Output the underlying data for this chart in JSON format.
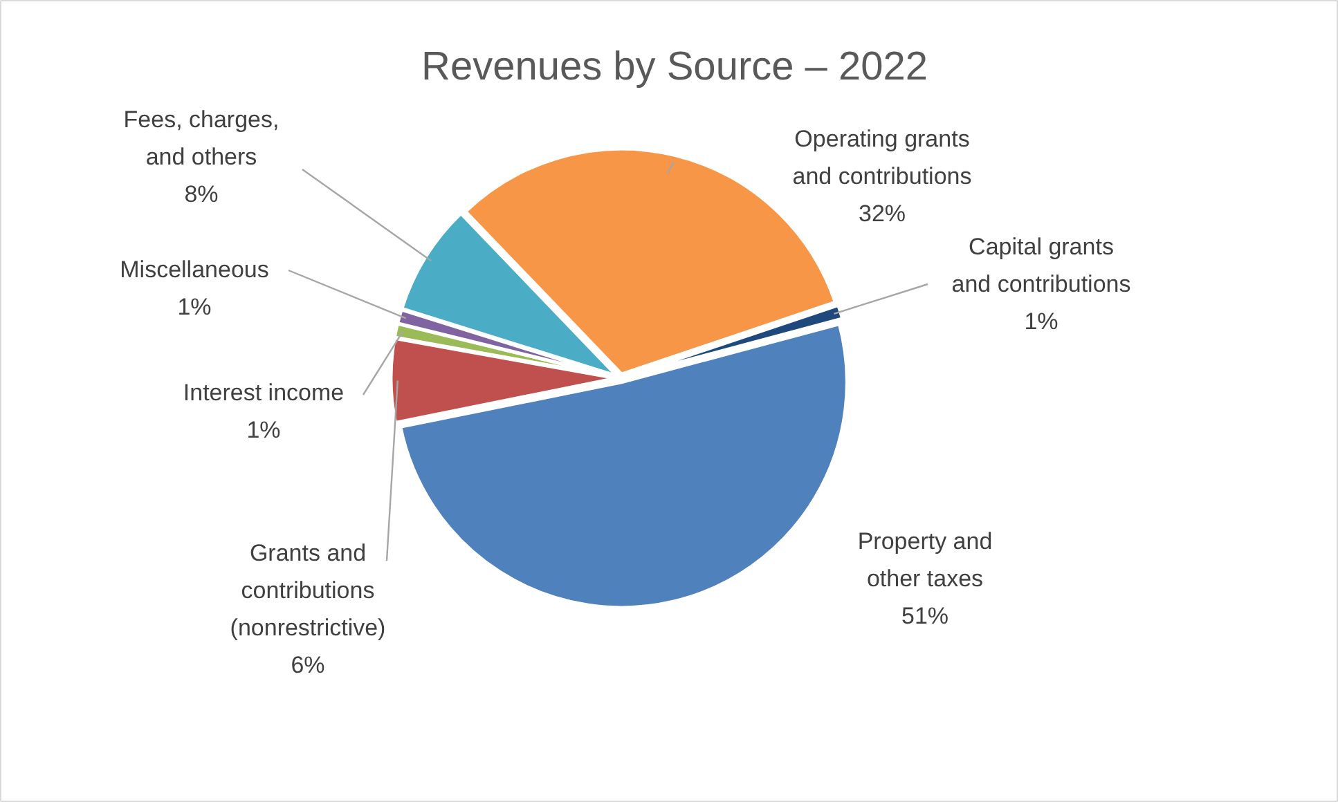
{
  "chart_data": {
    "type": "pie",
    "title": "Revenues by Source – 2022",
    "categories": [
      "Property and other taxes",
      "Grants and contributions (nonrestrictive)",
      "Interest income",
      "Miscellaneous",
      "Fees, charges, and others",
      "Operating grants and contributions",
      "Capital grants and contributions"
    ],
    "values": [
      51,
      6,
      1,
      1,
      8,
      32,
      1
    ],
    "value_labels": [
      "51%",
      "6%",
      "1%",
      "1%",
      "8%",
      "32%",
      "1%"
    ],
    "colors": [
      "#4f81bd",
      "#c0504d",
      "#9bbb59",
      "#8064a2",
      "#4bacc6",
      "#f79646",
      "#1f497d"
    ]
  }
}
